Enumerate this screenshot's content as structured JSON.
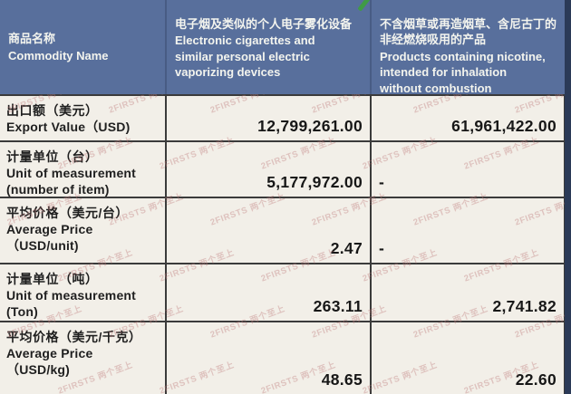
{
  "watermark": {
    "text": "2FIRSTS 两个至上"
  },
  "colors": {
    "header_bg": "#586f9c",
    "side_strip": "#2b3a57",
    "body_bg": "#f2efe8",
    "border": "#3b3b3b",
    "watermark": "#be7a7a",
    "green_mark": "#3f9b46"
  },
  "table": {
    "header": {
      "commodity": {
        "zh": "商品名称",
        "en": "Commodity Name"
      },
      "ecig": {
        "zh": "电子烟及类似的个人电子雾化设备",
        "en": "Electronic cigarettes and\nsimilar personal electric\nvaporizing devices"
      },
      "nicotine": {
        "zh": "不含烟草或再造烟草、含尼古丁的\n非经燃烧吸用的产品",
        "en": "Products containing nicotine,\nintended for inhalation\nwithout combustion"
      }
    },
    "rows": [
      {
        "label_zh": "出口额（美元）",
        "label_en": "Export Value（USD)",
        "ecig": "12,799,261.00",
        "nicotine": "61,961,422.00"
      },
      {
        "label_zh": "计量单位（台）",
        "label_en": "Unit of measurement\n(number of item)",
        "ecig": "5,177,972.00",
        "nicotine": "-"
      },
      {
        "label_zh": "平均价格（美元/台）",
        "label_en": "Average Price\n（USD/unit)",
        "ecig": "2.47",
        "nicotine": "-"
      },
      {
        "label_zh": "计量单位（吨）",
        "label_en": "Unit of measurement\n(Ton)",
        "ecig": "263.11",
        "nicotine": "2,741.82"
      },
      {
        "label_zh": "平均价格（美元/千克）",
        "label_en": "Average Price\n（USD/kg)",
        "ecig": "48.65",
        "nicotine": "22.60"
      }
    ]
  }
}
